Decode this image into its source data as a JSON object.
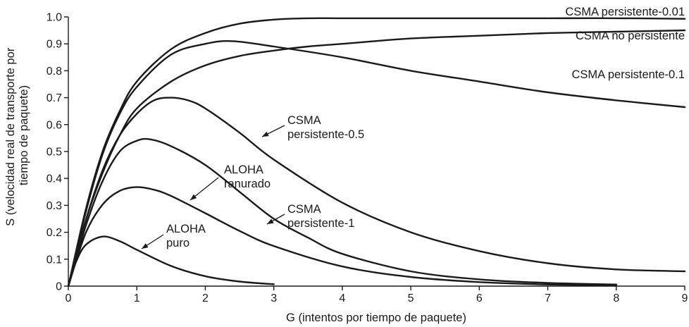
{
  "chart_data": {
    "type": "line",
    "xlabel": "G (intentos por tiempo de paquete)",
    "ylabel": "S (velocidad real de transporte por tiempo de paquete)",
    "xlim": [
      0,
      9
    ],
    "ylim": [
      0,
      1.0
    ],
    "x_ticks": [
      "0",
      "1",
      "2",
      "3",
      "4",
      "5",
      "6",
      "7",
      "8",
      "9"
    ],
    "y_ticks": [
      "0",
      "0.1",
      "0.2",
      "0.3",
      "0.4",
      "0.5",
      "0.6",
      "0.7",
      "0.8",
      "0.9",
      "1.0"
    ],
    "grid": false,
    "legend": "none",
    "series": [
      {
        "name": "CSMA persistente-0.01",
        "label_lines": [
          "CSMA persistente-0.01"
        ],
        "points": [
          [
            0,
            0
          ],
          [
            0.25,
            0.28
          ],
          [
            0.5,
            0.5
          ],
          [
            0.75,
            0.65
          ],
          [
            1,
            0.76
          ],
          [
            1.5,
            0.88
          ],
          [
            2,
            0.94
          ],
          [
            2.5,
            0.975
          ],
          [
            3,
            0.99
          ],
          [
            3.5,
            0.995
          ],
          [
            4,
            0.995
          ],
          [
            5,
            0.995
          ],
          [
            6,
            0.995
          ],
          [
            7,
            0.995
          ],
          [
            8,
            0.995
          ],
          [
            9,
            0.993
          ]
        ]
      },
      {
        "name": "CSMA no persistente",
        "label_lines": [
          "CSMA no persistente"
        ],
        "points": [
          [
            0,
            0
          ],
          [
            0.25,
            0.24
          ],
          [
            0.5,
            0.42
          ],
          [
            0.75,
            0.56
          ],
          [
            1,
            0.66
          ],
          [
            1.5,
            0.76
          ],
          [
            2,
            0.82
          ],
          [
            2.5,
            0.855
          ],
          [
            3,
            0.875
          ],
          [
            3.5,
            0.89
          ],
          [
            4,
            0.9
          ],
          [
            5,
            0.92
          ],
          [
            6,
            0.93
          ],
          [
            7,
            0.94
          ],
          [
            8,
            0.945
          ],
          [
            9,
            0.95
          ]
        ]
      },
      {
        "name": "CSMA persistente-0.1",
        "label_lines": [
          "CSMA persistente-0.1"
        ],
        "points": [
          [
            0,
            0
          ],
          [
            0.25,
            0.27
          ],
          [
            0.5,
            0.49
          ],
          [
            0.75,
            0.64
          ],
          [
            1,
            0.74
          ],
          [
            1.5,
            0.86
          ],
          [
            2,
            0.9
          ],
          [
            2.4,
            0.91
          ],
          [
            3,
            0.89
          ],
          [
            4,
            0.85
          ],
          [
            5,
            0.8
          ],
          [
            6,
            0.76
          ],
          [
            7,
            0.72
          ],
          [
            8,
            0.69
          ],
          [
            9,
            0.665
          ]
        ]
      },
      {
        "name": "CSMA persistente-0.5",
        "label_lines": [
          "CSMA",
          "persistente-0.5"
        ],
        "points": [
          [
            0,
            0
          ],
          [
            0.25,
            0.24
          ],
          [
            0.5,
            0.43
          ],
          [
            0.75,
            0.56
          ],
          [
            1,
            0.64
          ],
          [
            1.25,
            0.69
          ],
          [
            1.5,
            0.7
          ],
          [
            1.75,
            0.69
          ],
          [
            2,
            0.66
          ],
          [
            2.5,
            0.57
          ],
          [
            3,
            0.47
          ],
          [
            4,
            0.31
          ],
          [
            5,
            0.2
          ],
          [
            6,
            0.13
          ],
          [
            7,
            0.085
          ],
          [
            8,
            0.062
          ],
          [
            9,
            0.055
          ]
        ]
      },
      {
        "name": "CSMA persistente-1",
        "label_lines": [
          "CSMA",
          "persistente-1"
        ],
        "points": [
          [
            0,
            0
          ],
          [
            0.25,
            0.22
          ],
          [
            0.5,
            0.39
          ],
          [
            0.75,
            0.5
          ],
          [
            1,
            0.54
          ],
          [
            1.2,
            0.545
          ],
          [
            1.5,
            0.52
          ],
          [
            2,
            0.45
          ],
          [
            2.5,
            0.35
          ],
          [
            3,
            0.25
          ],
          [
            3.5,
            0.18
          ],
          [
            4,
            0.12
          ],
          [
            5,
            0.055
          ],
          [
            6,
            0.025
          ],
          [
            7,
            0.012
          ],
          [
            8,
            0.006
          ]
        ]
      },
      {
        "name": "ALOHA ranurado",
        "label_lines": [
          "ALOHA",
          "ranurado"
        ],
        "points": [
          [
            0,
            0
          ],
          [
            0.25,
            0.195
          ],
          [
            0.5,
            0.303
          ],
          [
            0.75,
            0.354
          ],
          [
            1,
            0.368
          ],
          [
            1.25,
            0.358
          ],
          [
            1.5,
            0.335
          ],
          [
            2,
            0.271
          ],
          [
            2.5,
            0.205
          ],
          [
            3,
            0.149
          ],
          [
            4,
            0.073
          ],
          [
            5,
            0.034
          ],
          [
            6,
            0.015
          ],
          [
            7,
            0.006
          ],
          [
            8,
            0.003
          ]
        ]
      },
      {
        "name": "ALOHA puro",
        "label_lines": [
          "ALOHA",
          "puro"
        ],
        "points": [
          [
            0,
            0
          ],
          [
            0.1,
            0.082
          ],
          [
            0.25,
            0.152
          ],
          [
            0.5,
            0.184
          ],
          [
            0.75,
            0.167
          ],
          [
            1,
            0.135
          ],
          [
            1.5,
            0.075
          ],
          [
            2,
            0.037
          ],
          [
            2.5,
            0.017
          ],
          [
            3,
            0.007
          ]
        ]
      }
    ]
  }
}
